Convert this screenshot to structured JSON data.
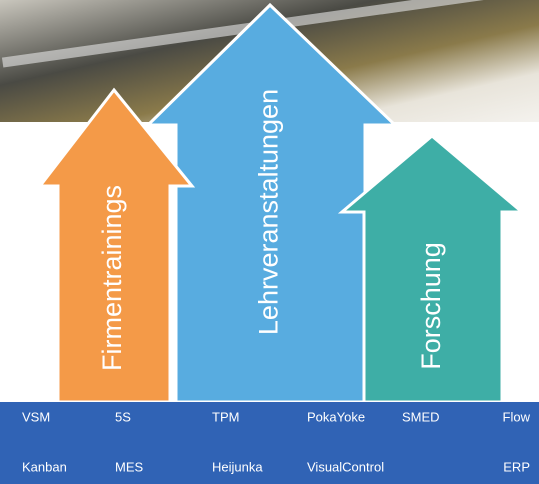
{
  "arrows": [
    {
      "label": "Lehrveranstaltungen"
    },
    {
      "label": "Firmentrainings"
    },
    {
      "label": "Forschung"
    }
  ],
  "terms": {
    "rows": [
      [
        "VSM",
        "5S",
        "TPM",
        "PokaYoke",
        "SMED",
        "Flow"
      ],
      [
        "Kanban",
        "MES",
        "Heijunka",
        "VisualControl",
        "ERP"
      ]
    ]
  }
}
